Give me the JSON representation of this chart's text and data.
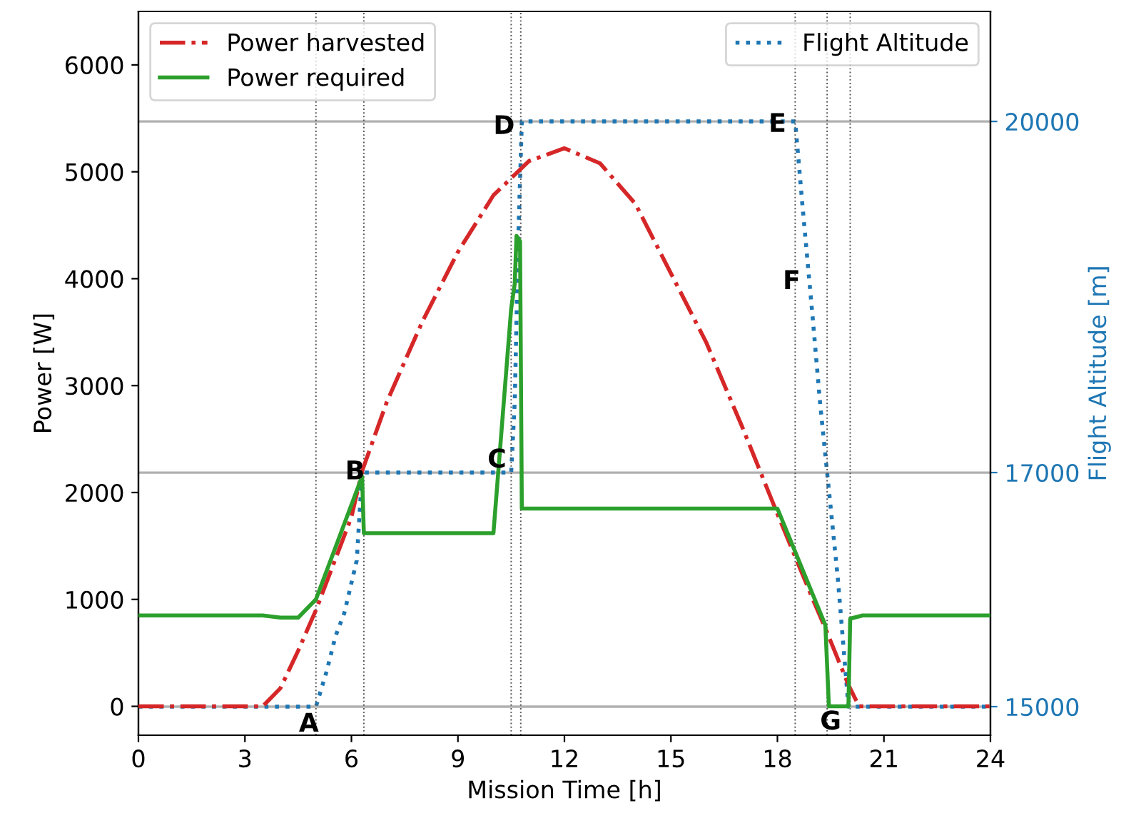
{
  "chart_data": {
    "type": "line",
    "xlabel": "Mission Time [h]",
    "ylabel": "Power [W]",
    "y2label": "Flight Altitude [m]",
    "xlim": [
      0,
      24
    ],
    "xticks": [
      0,
      3,
      6,
      9,
      12,
      15,
      18,
      21,
      24
    ],
    "ylim": [
      -270,
      6500
    ],
    "yticks": [
      0,
      1000,
      2000,
      3000,
      4000,
      5000,
      6000
    ],
    "y2lim": [
      14756,
      20940
    ],
    "y2ticks": [
      15000,
      17000,
      20000
    ],
    "grid": false,
    "legend": "top",
    "series": [
      {
        "name": "Power harvested",
        "color": "#d62728",
        "line_style": "dashdot",
        "x": [
          0,
          3.5,
          4,
          4.5,
          5,
          6,
          6.3,
          7,
          8,
          9,
          10,
          11,
          12,
          13,
          14,
          15,
          16,
          17,
          18,
          19,
          19.4,
          20,
          20.3,
          24
        ],
        "values": [
          0,
          0,
          170,
          520,
          900,
          1770,
          2200,
          2850,
          3600,
          4250,
          4780,
          5100,
          5220,
          5080,
          4700,
          4050,
          3400,
          2620,
          1800,
          1000,
          690,
          200,
          0,
          0
        ]
      },
      {
        "name": "Power required",
        "color": "#2ca02c",
        "line_style": "solid",
        "x": [
          0,
          3.5,
          4,
          4.5,
          5,
          6.3,
          6.35,
          10,
          10.5,
          10.6,
          10.65,
          10.75,
          10.8,
          18,
          19.35,
          19.45,
          20,
          20.05,
          20.4,
          24
        ],
        "values": [
          850,
          850,
          830,
          830,
          1000,
          2150,
          1620,
          1620,
          3720,
          3950,
          4400,
          4350,
          1850,
          1850,
          760,
          0,
          0,
          820,
          850,
          850
        ]
      },
      {
        "name": "Flight Altitude",
        "color": "#1f77b4",
        "line_style": "dotted",
        "axis": "y2",
        "x": [
          0,
          5,
          5.3,
          5.55,
          5.8,
          6.15,
          6.3,
          10.5,
          10.6,
          10.7,
          10.8,
          18.5,
          18.7,
          19.0,
          19.2,
          19.4,
          19.7,
          20.0,
          24
        ],
        "values": [
          15000,
          15000,
          15300,
          15600,
          15800,
          16250,
          17000,
          17000,
          17600,
          19000,
          20000,
          20000,
          19300,
          18300,
          17600,
          17000,
          16100,
          15000,
          15000
        ]
      }
    ],
    "ref_lines": [
      {
        "axis": "x",
        "value": 5,
        "color": "#555555",
        "line_style": "dotted"
      },
      {
        "axis": "x",
        "value": 6.35,
        "color": "#555555",
        "line_style": "dotted"
      },
      {
        "axis": "x",
        "value": 10.5,
        "color": "#555555",
        "line_style": "dotted"
      },
      {
        "axis": "x",
        "value": 10.77,
        "color": "#555555",
        "line_style": "dotted"
      },
      {
        "axis": "x",
        "value": 18.5,
        "color": "#555555",
        "line_style": "dotted"
      },
      {
        "axis": "x",
        "value": 19.4,
        "color": "#555555",
        "line_style": "dotted"
      },
      {
        "axis": "x",
        "value": 20.05,
        "color": "#555555",
        "line_style": "dotted"
      },
      {
        "axis": "y2",
        "value": 15000,
        "color": "#b0b0b0",
        "line_style": "solid"
      },
      {
        "axis": "y2",
        "value": 17000,
        "color": "#b0b0b0",
        "line_style": "solid"
      },
      {
        "axis": "y2",
        "value": 20000,
        "color": "#b0b0b0",
        "line_style": "solid"
      }
    ],
    "annotations": [
      {
        "text": "A",
        "x": 4.8,
        "y": -170
      },
      {
        "text": "B",
        "x": 6.1,
        "y": 2190
      },
      {
        "text": "C",
        "x": 10.1,
        "y": 2300
      },
      {
        "text": "D",
        "x": 10.3,
        "y": 5420
      },
      {
        "text": "E",
        "x": 18.0,
        "y": 5440
      },
      {
        "text": "F",
        "x": 18.4,
        "y": 3970
      },
      {
        "text": "G",
        "x": 19.5,
        "y": -150
      }
    ]
  }
}
